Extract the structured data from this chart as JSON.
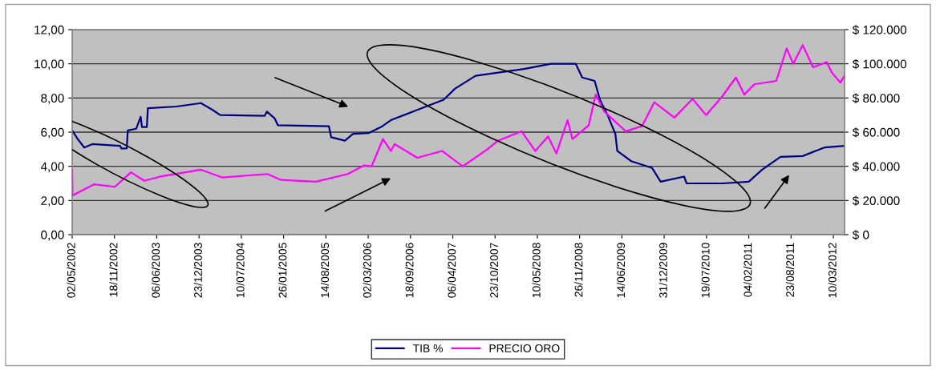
{
  "chart_data": {
    "type": "line",
    "legend": "bottom",
    "grid": "y",
    "marker": "none",
    "line_style": "solid",
    "xlim": [
      "2002-05-02",
      "2012-05-02"
    ],
    "xticks": [
      {
        "value": "2002-05-02",
        "label": "02/05/2002"
      },
      {
        "value": "2002-11-18",
        "label": "18/11/2002"
      },
      {
        "value": "2003-06-06",
        "label": "06/06/2003"
      },
      {
        "value": "2003-12-23",
        "label": "23/12/2003"
      },
      {
        "value": "2004-07-10",
        "label": "10/07/2004"
      },
      {
        "value": "2005-01-26",
        "label": "26/01/2005"
      },
      {
        "value": "2005-08-14",
        "label": "14/08/2005"
      },
      {
        "value": "2006-03-02",
        "label": "02/03/2006"
      },
      {
        "value": "2006-09-18",
        "label": "18/09/2006"
      },
      {
        "value": "2007-04-06",
        "label": "06/04/2007"
      },
      {
        "value": "2007-10-23",
        "label": "23/10/2007"
      },
      {
        "value": "2008-05-10",
        "label": "10/05/2008"
      },
      {
        "value": "2008-11-26",
        "label": "26/11/2008"
      },
      {
        "value": "2009-06-14",
        "label": "14/06/2009"
      },
      {
        "value": "2009-12-31",
        "label": "31/12/2009"
      },
      {
        "value": "2010-07-19",
        "label": "19/07/2010"
      },
      {
        "value": "2011-02-04",
        "label": "04/02/2011"
      },
      {
        "value": "2011-08-23",
        "label": "23/08/2011"
      },
      {
        "value": "2012-03-10",
        "label": "10/03/2012"
      }
    ],
    "ylim": [
      0,
      12
    ],
    "yticks": [
      {
        "value": 0,
        "label": "0,00"
      },
      {
        "value": 2,
        "label": "2,00"
      },
      {
        "value": 4,
        "label": "4,00"
      },
      {
        "value": 6,
        "label": "6,00"
      },
      {
        "value": 8,
        "label": "8,00"
      },
      {
        "value": 10,
        "label": "10,00"
      },
      {
        "value": 12,
        "label": "12,00"
      }
    ],
    "y2lim": [
      0,
      120000
    ],
    "y2ticks": [
      {
        "value": 0,
        "label": "$ 0"
      },
      {
        "value": 20000,
        "label": "$ 20.000"
      },
      {
        "value": 40000,
        "label": "$ 40.000"
      },
      {
        "value": 60000,
        "label": "$ 60.000"
      },
      {
        "value": 80000,
        "label": "$ 80.000"
      },
      {
        "value": 100000,
        "label": "$ 100.000"
      },
      {
        "value": 120000,
        "label": "$ 120.000"
      }
    ],
    "series": [
      {
        "name": "TIB %",
        "color": "#000080",
        "x": [
          "2002-05-02",
          "2002-05-28",
          "2002-06-28",
          "2002-08-05",
          "2002-12-15",
          "2002-12-20",
          "2003-01-15",
          "2003-01-20",
          "2003-03-01",
          "2003-03-22",
          "2003-03-28",
          "2003-04-20",
          "2003-04-25",
          "2003-09-08",
          "2004-01-01",
          "2004-02-25",
          "2004-04-01",
          "2004-10-28",
          "2004-11-08",
          "2004-12-15",
          "2004-12-30",
          "2005-08-28",
          "2005-09-08",
          "2005-11-12",
          "2005-12-20",
          "2006-03-05",
          "2006-05-02",
          "2006-06-17",
          "2006-10-20",
          "2007-02-22",
          "2007-04-17",
          "2007-07-23",
          "2008-03-08",
          "2008-07-14",
          "2008-11-08",
          "2008-12-08",
          "2009-02-05",
          "2009-03-02",
          "2009-04-07",
          "2009-05-14",
          "2009-05-23",
          "2009-07-28",
          "2009-11-04",
          "2009-12-14",
          "2010-04-04",
          "2010-04-16",
          "2010-10-02",
          "2011-02-04",
          "2011-04-08",
          "2011-07-04",
          "2011-10-17",
          "2012-01-27",
          "2012-05-02"
        ],
        "values": [
          6.1,
          5.6,
          5.1,
          5.3,
          5.2,
          5.05,
          5.05,
          6.1,
          6.2,
          6.9,
          6.3,
          6.3,
          7.4,
          7.5,
          7.7,
          7.3,
          7.0,
          6.95,
          7.2,
          6.8,
          6.4,
          6.35,
          5.7,
          5.5,
          5.9,
          5.95,
          6.3,
          6.7,
          7.3,
          7.9,
          8.55,
          9.3,
          9.7,
          10.0,
          10.0,
          9.2,
          9.0,
          7.9,
          7.0,
          5.9,
          4.9,
          4.3,
          3.9,
          3.1,
          3.4,
          3.0,
          3.0,
          3.1,
          3.8,
          4.55,
          4.6,
          5.1,
          5.2
        ]
      },
      {
        "name": "PRECIO ORO",
        "color": "#ff00ff",
        "axis": "y2",
        "x": [
          "2002-05-02",
          "2002-05-04",
          "2002-08-14",
          "2002-11-20",
          "2003-02-04",
          "2003-04-08",
          "2003-06-23",
          "2004-01-01",
          "2004-04-10",
          "2004-11-10",
          "2005-01-14",
          "2005-06-27",
          "2005-11-26",
          "2006-02-10",
          "2006-03-18",
          "2006-05-11",
          "2006-06-17",
          "2006-07-05",
          "2006-10-20",
          "2007-02-14",
          "2007-05-23",
          "2007-09-17",
          "2007-11-05",
          "2008-02-25",
          "2008-04-30",
          "2008-06-30",
          "2008-08-08",
          "2008-09-30",
          "2008-10-23",
          "2009-01-08",
          "2009-02-10",
          "2009-03-23",
          "2009-07-02",
          "2009-09-17",
          "2009-11-14",
          "2010-02-17",
          "2010-05-14",
          "2010-07-17",
          "2010-10-02",
          "2010-12-05",
          "2011-01-14",
          "2011-03-02",
          "2011-06-14",
          "2011-08-02",
          "2011-09-02",
          "2011-10-17",
          "2011-12-05",
          "2012-02-08",
          "2012-03-02",
          "2012-04-12",
          "2012-05-02"
        ],
        "values": [
          38000,
          23000,
          29500,
          28000,
          36500,
          31500,
          34000,
          38000,
          33500,
          35500,
          32000,
          31000,
          35500,
          40500,
          40000,
          56000,
          49000,
          53000,
          45000,
          49000,
          40000,
          50000,
          55000,
          60500,
          49000,
          57500,
          47500,
          67000,
          56000,
          64000,
          82000,
          72000,
          60500,
          63500,
          77500,
          68500,
          79500,
          70000,
          81000,
          92000,
          82000,
          88000,
          90000,
          109000,
          100000,
          111000,
          98000,
          101000,
          95000,
          89000,
          93000
        ]
      }
    ]
  }
}
